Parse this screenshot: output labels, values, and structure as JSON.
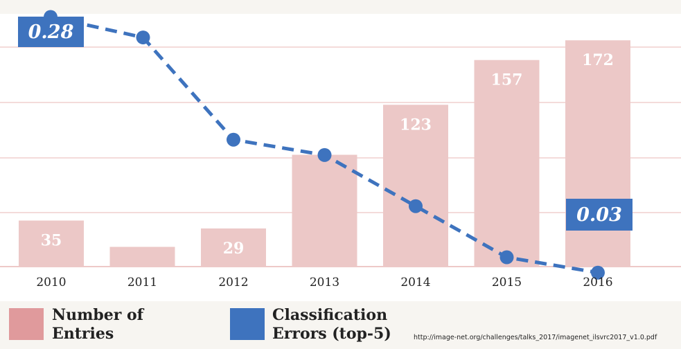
{
  "chart_data": {
    "type": "bar",
    "categories": [
      "2010",
      "2011",
      "2012",
      "2013",
      "2014",
      "2015",
      "2016"
    ],
    "series": [
      {
        "name": "Number of Entries",
        "type": "bar",
        "color": "#ecc8c7",
        "values": [
          35,
          15,
          29,
          85,
          123,
          157,
          172
        ],
        "value_labels": [
          "35",
          "",
          "29",
          "",
          "123",
          "157",
          "172"
        ]
      },
      {
        "name": "Classification Errors (top-5)",
        "type": "line",
        "style": "dashed",
        "color": "#3e73be",
        "values": [
          0.28,
          0.26,
          0.16,
          0.145,
          0.095,
          0.045,
          0.03
        ]
      }
    ],
    "ylim_bars": [
      0,
      200
    ],
    "ylim_errors": [
      0,
      0.3
    ],
    "grid": true,
    "gridline_color": "#e9b7b5",
    "callouts": [
      {
        "text": "0.28",
        "series": 1,
        "index": 0
      },
      {
        "text": "0.03",
        "series": 1,
        "index": 6
      }
    ],
    "legend": [
      {
        "label": "Number of\nEntries",
        "color": "#e09a9c"
      },
      {
        "label": "Classification\nErrors (top-5)",
        "color": "#3e73be"
      }
    ],
    "legend_position": "bottom-left"
  },
  "source_text": "http://image-net.org/challenges/talks_2017/imagenet_ilsvrc2017_v1.0.pdf"
}
